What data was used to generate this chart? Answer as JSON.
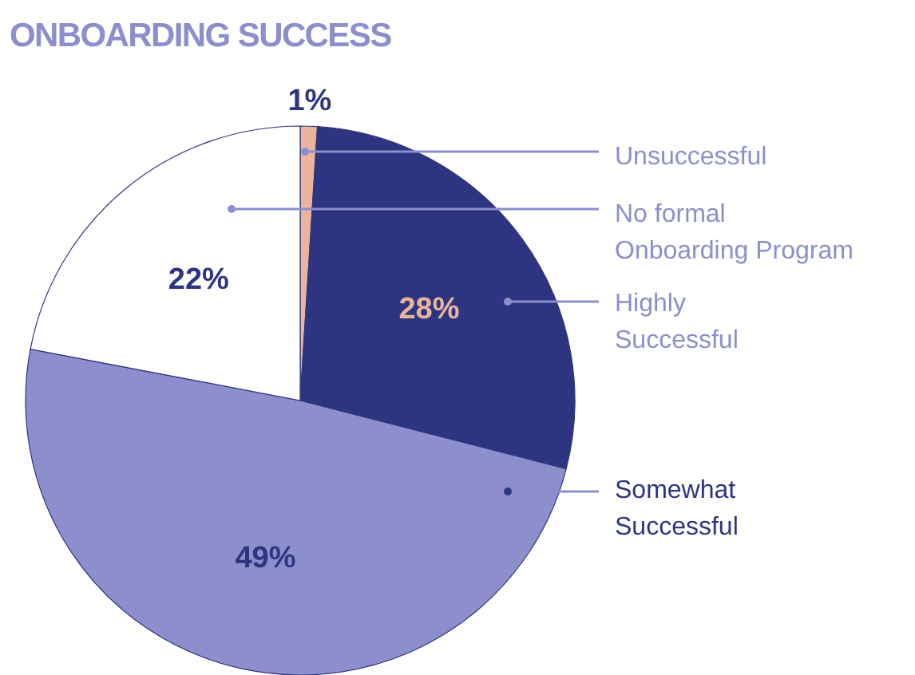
{
  "chart_data": {
    "type": "pie",
    "title": "ONBOARDING SUCCESS",
    "categories": [
      "Unsuccessful",
      "Highly Successful",
      "Somewhat Successful",
      "No formal Onboarding Program"
    ],
    "values": [
      1,
      28,
      49,
      22
    ],
    "colors": [
      "#eab59c",
      "#2e3580",
      "#8c8fcc",
      "#ffffff"
    ],
    "value_labels": [
      "1%",
      "28%",
      "49%",
      "22%"
    ]
  }
}
